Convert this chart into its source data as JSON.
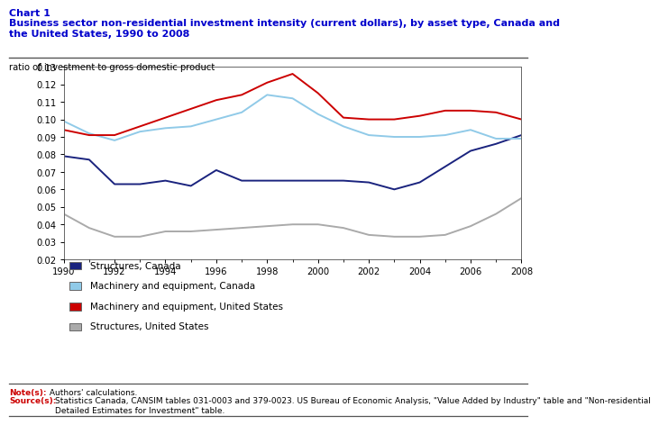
{
  "title_line1": "Chart 1",
  "title_line2": "Business sector non-residential investment intensity (current dollars), by asset type, Canada and\nthe United States, 1990 to 2008",
  "ylabel": "ratio of investment to gross domestic product",
  "years": [
    1990,
    1991,
    1992,
    1993,
    1994,
    1995,
    1996,
    1997,
    1998,
    1999,
    2000,
    2001,
    2002,
    2003,
    2004,
    2005,
    2006,
    2007,
    2008
  ],
  "structures_canada": [
    0.079,
    0.077,
    0.063,
    0.063,
    0.065,
    0.062,
    0.071,
    0.065,
    0.065,
    0.065,
    0.065,
    0.065,
    0.064,
    0.06,
    0.064,
    0.073,
    0.082,
    0.086,
    0.091
  ],
  "machinery_canada": [
    0.099,
    0.092,
    0.088,
    0.093,
    0.095,
    0.096,
    0.1,
    0.104,
    0.114,
    0.112,
    0.103,
    0.096,
    0.091,
    0.09,
    0.09,
    0.091,
    0.094,
    0.089,
    0.089
  ],
  "machinery_us": [
    0.094,
    0.091,
    0.091,
    0.096,
    0.101,
    0.106,
    0.111,
    0.114,
    0.121,
    0.126,
    0.115,
    0.101,
    0.1,
    0.1,
    0.102,
    0.105,
    0.105,
    0.104,
    0.1
  ],
  "structures_us": [
    0.046,
    0.038,
    0.033,
    0.033,
    0.036,
    0.036,
    0.037,
    0.038,
    0.039,
    0.04,
    0.04,
    0.038,
    0.034,
    0.033,
    0.033,
    0.034,
    0.039,
    0.046,
    0.055
  ],
  "color_structures_canada": "#1a237e",
  "color_machinery_canada": "#90cae8",
  "color_machinery_us": "#cc0000",
  "color_structures_us": "#aaaaaa",
  "ylim_min": 0.02,
  "ylim_max": 0.13,
  "yticks": [
    0.02,
    0.03,
    0.04,
    0.05,
    0.06,
    0.07,
    0.08,
    0.09,
    0.1,
    0.11,
    0.12,
    0.13
  ],
  "xticks": [
    1990,
    1992,
    1994,
    1996,
    1998,
    2000,
    2002,
    2004,
    2006,
    2008
  ],
  "title_color": "#0000cc",
  "note_bold_color": "#cc0000",
  "legend_labels": [
    "Structures, Canada",
    "Machinery and equipment, Canada",
    "Machinery and equipment, United States",
    "Structures, United States"
  ]
}
